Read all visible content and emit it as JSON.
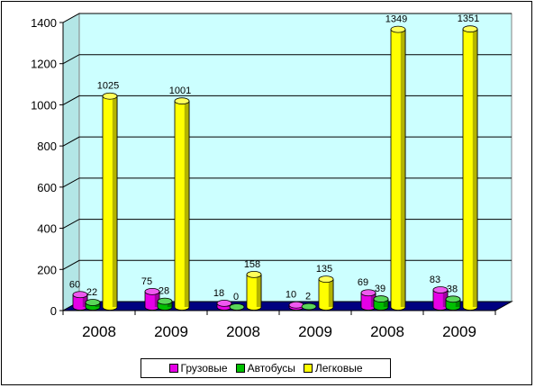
{
  "chart_data": {
    "type": "bar",
    "categories": [
      "2008",
      "2009",
      "2008",
      "2009",
      "2008",
      "2009"
    ],
    "series": [
      {
        "name": "Грузовые",
        "color": "#e600e6",
        "values": [
          60,
          75,
          18,
          10,
          69,
          83
        ],
        "labels": [
          "60",
          "75",
          "18",
          "10",
          "69",
          "83"
        ]
      },
      {
        "name": "Автобусы",
        "color": "#00c000",
        "values": [
          22,
          28,
          0,
          2,
          39,
          38
        ],
        "labels": [
          "22",
          "28",
          "0",
          "2",
          "39",
          "38"
        ]
      },
      {
        "name": "Легковые",
        "color": "#ffff00",
        "values": [
          1025,
          1001,
          158,
          135,
          1349,
          1351
        ],
        "labels": [
          "1025",
          "1001",
          "158",
          "135",
          "1349",
          "1351"
        ]
      }
    ],
    "ylim": [
      0,
      1400
    ],
    "yticks": [
      "0",
      "200",
      "400",
      "600",
      "800",
      "1000",
      "1200",
      "1400"
    ],
    "grid": true,
    "legend_position": "bottom",
    "style": "3d-cylinder"
  }
}
